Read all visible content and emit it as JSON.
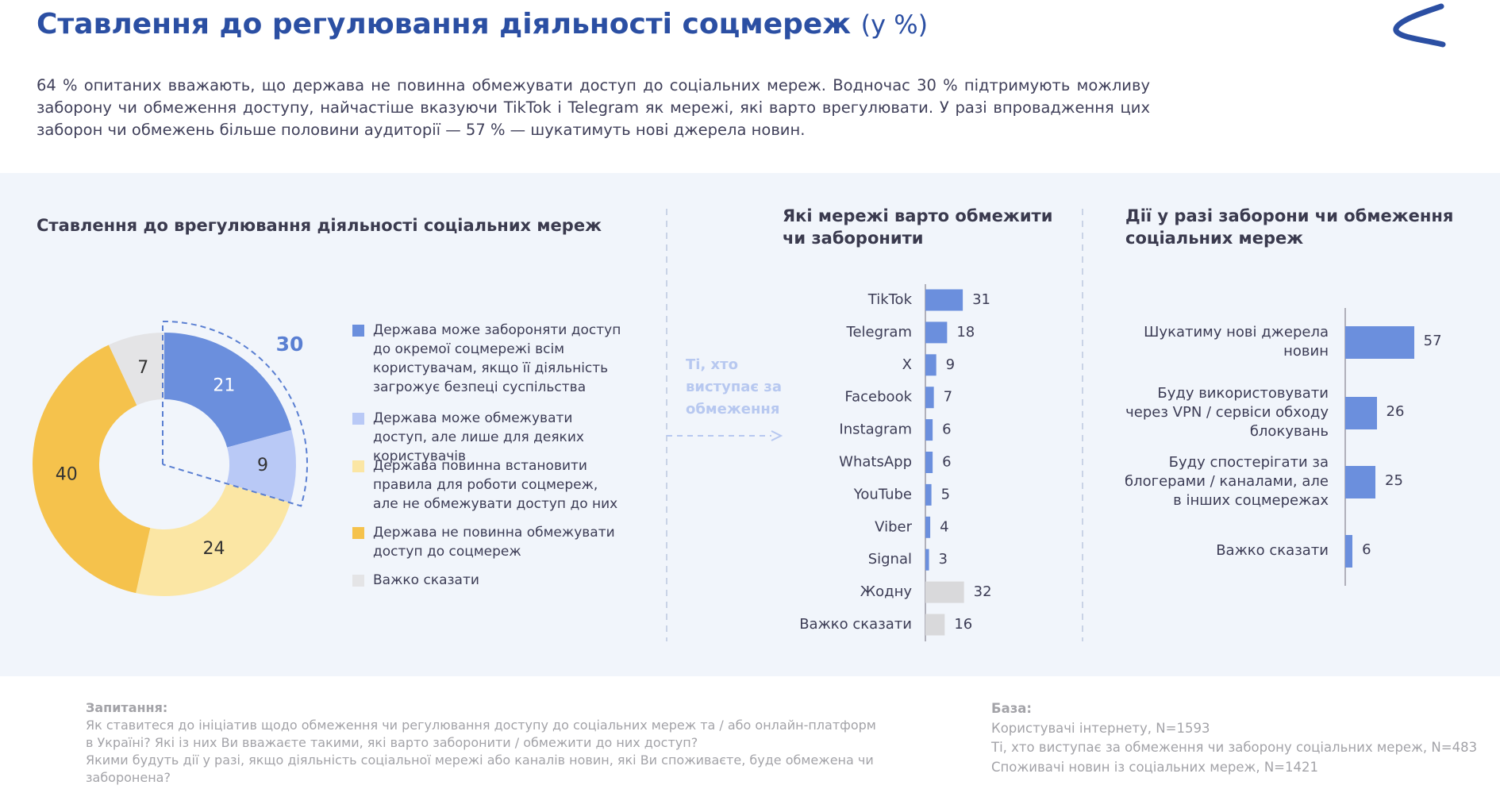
{
  "header": {
    "title": "Ставлення до регулювання діяльності соцмереж",
    "title_unit": "(у %)",
    "summary": "64 % опитаних вважають, що держава не повинна обмежувати доступ до соціальних мереж. Водночас 30 % підтримують можливу заборону чи обмеження доступу, найчастіше вказуючи TikTok і Telegram як мережі, які варто врегулювати. У разі впровадження цих заборон чи обмежень більше половини аудиторії — 57 % — шукатимуть нові джерела новин."
  },
  "chart_data": [
    {
      "type": "pie",
      "title": "Ставлення до врегулювання діяльності соціальних мереж",
      "categories": [
        "Держава може забороняти доступ до окремої соцмережі всім користувачам, якщо її діяльність загрожує безпеці суспільства",
        "Держава може обмежувати доступ, але лише для деяких користувачів",
        "Держава повинна встановити правила для роботи соцмереж, але не обмежувати доступ до них",
        "Держава не повинна  обмежувати доступ до соцмереж",
        "Важко сказати"
      ],
      "values": [
        21,
        9,
        24,
        40,
        7
      ],
      "colors": [
        "#6b8fdd",
        "#b9c9f6",
        "#fbe6a4",
        "#f5c24c",
        "#e4e4e6"
      ],
      "group_total": 30
    },
    {
      "type": "bar",
      "title": "Які мережі варто обмежити чи заборонити",
      "categories": [
        "TikTok",
        "Telegram",
        "X",
        "Facebook",
        "Instagram",
        "WhatsApp",
        "YouTube",
        "Viber",
        "Signal",
        "Жодну",
        "Важко сказати"
      ],
      "values": [
        31,
        18,
        9,
        7,
        6,
        6,
        5,
        4,
        3,
        32,
        16
      ],
      "colors": [
        "#6b8fdd",
        "#6b8fdd",
        "#6b8fdd",
        "#6b8fdd",
        "#6b8fdd",
        "#6b8fdd",
        "#6b8fdd",
        "#6b8fdd",
        "#6b8fdd",
        "#d9d9db",
        "#d9d9db"
      ]
    },
    {
      "type": "bar",
      "title": "Дії у разі заборони чи обмеження соціальних мереж",
      "categories": [
        "Шукатиму нові джерела новин",
        "Буду використовувати через VPN / сервіси обходу блокувань",
        "Буду спостерігати за блогерами / каналами, але в інших соцмережах",
        "Важко сказати"
      ],
      "values": [
        57,
        26,
        25,
        6
      ],
      "colors": [
        "#6b8fdd",
        "#6b8fdd",
        "#6b8fdd",
        "#6b8fdd"
      ]
    }
  ],
  "annotation": "Ті, хто виступає за обмеження",
  "footer": {
    "question_label": "Запитання:",
    "question_lines": [
      "Як ставитеся до ініціатив щодо обмеження чи регулювання доступу до соціальних мереж та / або онлайн-платформ в Україні? Які із них Ви вважаєте такими, які варто заборонити / обмежити до них доступ?",
      "Якими будуть дії у разі, якщо діяльність соціальної мережі або каналів новин, які Ви споживаєте, буде обмежена чи заборонена?"
    ],
    "base_label": "База:",
    "base_lines": [
      "Користувачі інтернету, N=1593",
      "Ті, хто виступає за обмеження чи заборону соціальних мереж, N=483",
      "Споживачі новин із соціальних мереж, N=1421"
    ]
  }
}
